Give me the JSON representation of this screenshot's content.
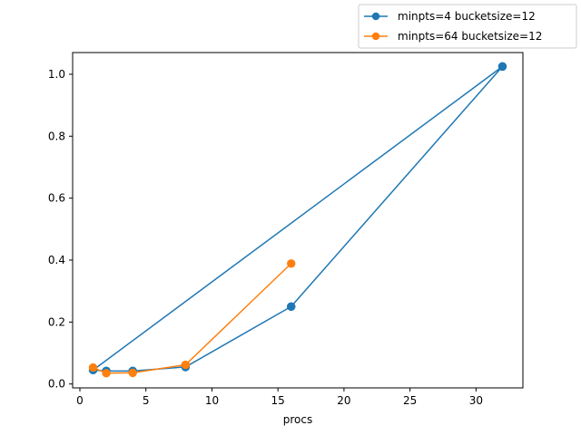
{
  "chart_data": {
    "type": "line",
    "title": "",
    "xlabel": "procs",
    "ylabel": "",
    "xlim": [
      -0.55,
      33.55
    ],
    "ylim": [
      -0.0125,
      1.07
    ],
    "xticks": [
      0,
      5,
      10,
      15,
      20,
      25,
      30
    ],
    "yticks": [
      0.0,
      0.2,
      0.4,
      0.6,
      0.8,
      1.0
    ],
    "xtick_labels": [
      "0",
      "5",
      "10",
      "15",
      "20",
      "25",
      "30"
    ],
    "ytick_labels": [
      "0.0",
      "0.2",
      "0.4",
      "0.6",
      "0.8",
      "1.0"
    ],
    "grid": false,
    "legend_position": "upper-right-outside",
    "series": [
      {
        "name": "minpts=4 bucketsize=12",
        "color": "#1f77b4",
        "marker": "circle",
        "x": [
          1,
          2,
          4,
          8,
          16,
          32,
          1,
          2,
          4,
          8,
          16,
          32
        ],
        "y": [
          0.045,
          0.042,
          0.042,
          0.055,
          0.25,
          1.025,
          0.045,
          0.042,
          0.042,
          0.055,
          0.25,
          1.025
        ]
      },
      {
        "name": "minpts=64 bucketsize=12",
        "color": "#ff7f0e",
        "marker": "circle",
        "x": [
          1,
          2,
          4,
          8,
          16
        ],
        "y": [
          0.053,
          0.035,
          0.036,
          0.062,
          0.389
        ]
      }
    ]
  }
}
